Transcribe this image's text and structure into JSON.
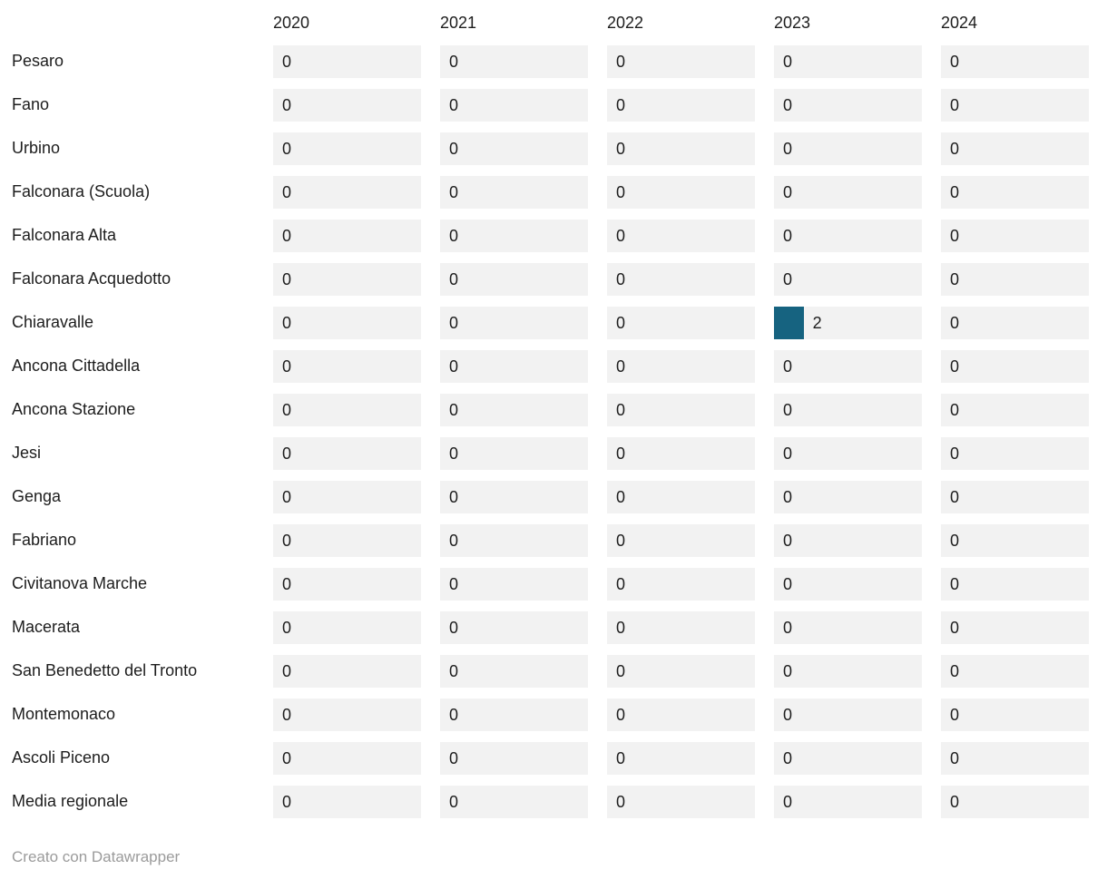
{
  "chart_data": {
    "type": "table",
    "title": "",
    "columns": [
      "2020",
      "2021",
      "2022",
      "2023",
      "2024"
    ],
    "rows": [
      {
        "label": "Pesaro",
        "values": [
          0,
          0,
          0,
          0,
          0
        ]
      },
      {
        "label": "Fano",
        "values": [
          0,
          0,
          0,
          0,
          0
        ]
      },
      {
        "label": "Urbino",
        "values": [
          0,
          0,
          0,
          0,
          0
        ]
      },
      {
        "label": "Falconara (Scuola)",
        "values": [
          0,
          0,
          0,
          0,
          0
        ]
      },
      {
        "label": "Falconara Alta",
        "values": [
          0,
          0,
          0,
          0,
          0
        ]
      },
      {
        "label": "Falconara Acquedotto",
        "values": [
          0,
          0,
          0,
          0,
          0
        ]
      },
      {
        "label": "Chiaravalle",
        "values": [
          0,
          0,
          0,
          2,
          0
        ]
      },
      {
        "label": "Ancona Cittadella",
        "values": [
          0,
          0,
          0,
          0,
          0
        ]
      },
      {
        "label": "Ancona Stazione",
        "values": [
          0,
          0,
          0,
          0,
          0
        ]
      },
      {
        "label": "Jesi",
        "values": [
          0,
          0,
          0,
          0,
          0
        ]
      },
      {
        "label": "Genga",
        "values": [
          0,
          0,
          0,
          0,
          0
        ]
      },
      {
        "label": "Fabriano",
        "values": [
          0,
          0,
          0,
          0,
          0
        ]
      },
      {
        "label": "Civitanova Marche",
        "values": [
          0,
          0,
          0,
          0,
          0
        ]
      },
      {
        "label": "Macerata",
        "values": [
          0,
          0,
          0,
          0,
          0
        ]
      },
      {
        "label": "San Benedetto del Tronto",
        "values": [
          0,
          0,
          0,
          0,
          0
        ]
      },
      {
        "label": "Montemonaco",
        "values": [
          0,
          0,
          0,
          0,
          0
        ]
      },
      {
        "label": "Ascoli Piceno",
        "values": [
          0,
          0,
          0,
          0,
          0
        ]
      },
      {
        "label": "Media regionale",
        "values": [
          0,
          0,
          0,
          0,
          0
        ]
      }
    ],
    "bar_scale_max": 10,
    "legend": "none",
    "grid": "off"
  },
  "footer": {
    "text": "Creato con Datawrapper"
  },
  "colors": {
    "bar": "#166380",
    "cell_background": "#f2f2f2",
    "text": "#1d1d1d",
    "footer_text": "#9b9b9b"
  }
}
